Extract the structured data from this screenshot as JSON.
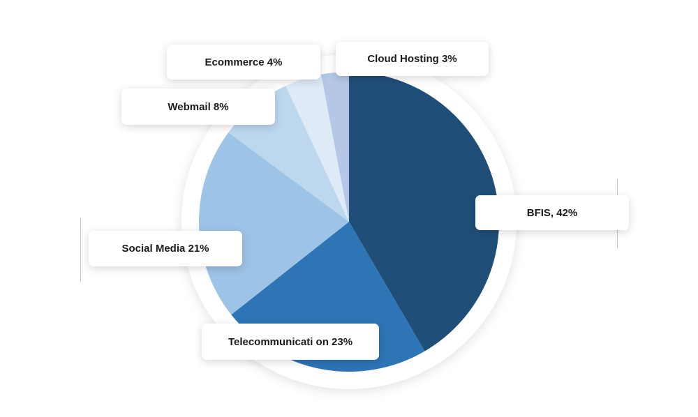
{
  "chart_data": {
    "type": "pie",
    "slices": [
      {
        "label": "BFIS, 42%",
        "value": 42,
        "color": "#1f4e79"
      },
      {
        "label": "Telecommunicati on 23%",
        "value": 23,
        "color": "#2e75b6"
      },
      {
        "label": "Social Media 21%",
        "value": 21,
        "color": "#9dc3e6"
      },
      {
        "label": "Webmail 8%",
        "value": 8,
        "color": "#bdd7ee"
      },
      {
        "label": "Ecommerce 4%",
        "value": 4,
        "color": "#deebf7"
      },
      {
        "label": "Cloud Hosting 3%",
        "value": 3,
        "color": "#b4c7e7"
      }
    ]
  }
}
